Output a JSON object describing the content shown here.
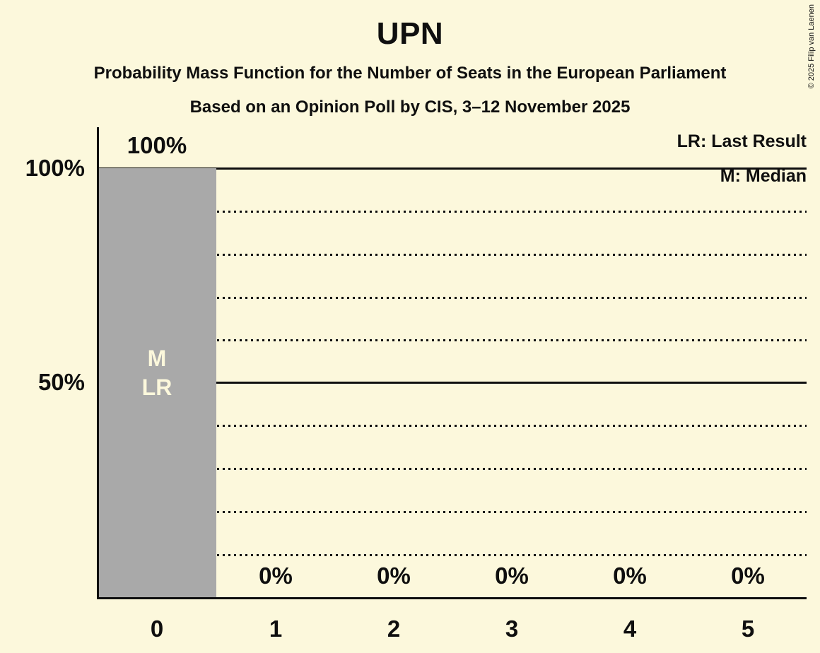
{
  "title": "UPN",
  "subtitle": "Probability Mass Function for the Number of Seats in the European Parliament",
  "poll_info": "Based on an Opinion Poll by CIS, 3–12 November 2025",
  "legend": {
    "lr_label": "LR: Last Result",
    "m_label": "M: Median"
  },
  "copyright": "© 2025 Filip van Laenen",
  "colors": {
    "background": "#fcf8dc",
    "bar": "#a9a9a9",
    "ink": "#0f0f0f",
    "bar_label": "#fcf8dc"
  },
  "chart_data": {
    "type": "bar",
    "title": "UPN",
    "categories": [
      "0",
      "1",
      "2",
      "3",
      "4",
      "5"
    ],
    "values": [
      100,
      0,
      0,
      0,
      0,
      0
    ],
    "value_labels": [
      "100%",
      "0%",
      "0%",
      "0%",
      "0%",
      "0%"
    ],
    "y_tick_labels": [
      "100%",
      "50%"
    ],
    "ylim": [
      0,
      100
    ],
    "xlabel": "",
    "ylabel": "",
    "grid": {
      "solid_at_pct": [
        50,
        100
      ],
      "dotted_at_pct": [
        10,
        20,
        30,
        40,
        60,
        70,
        80,
        90
      ]
    },
    "legend_position": "top-right",
    "annotations": {
      "median": {
        "label": "M",
        "category": "0"
      },
      "last_result": {
        "label": "LR",
        "category": "0"
      }
    }
  }
}
